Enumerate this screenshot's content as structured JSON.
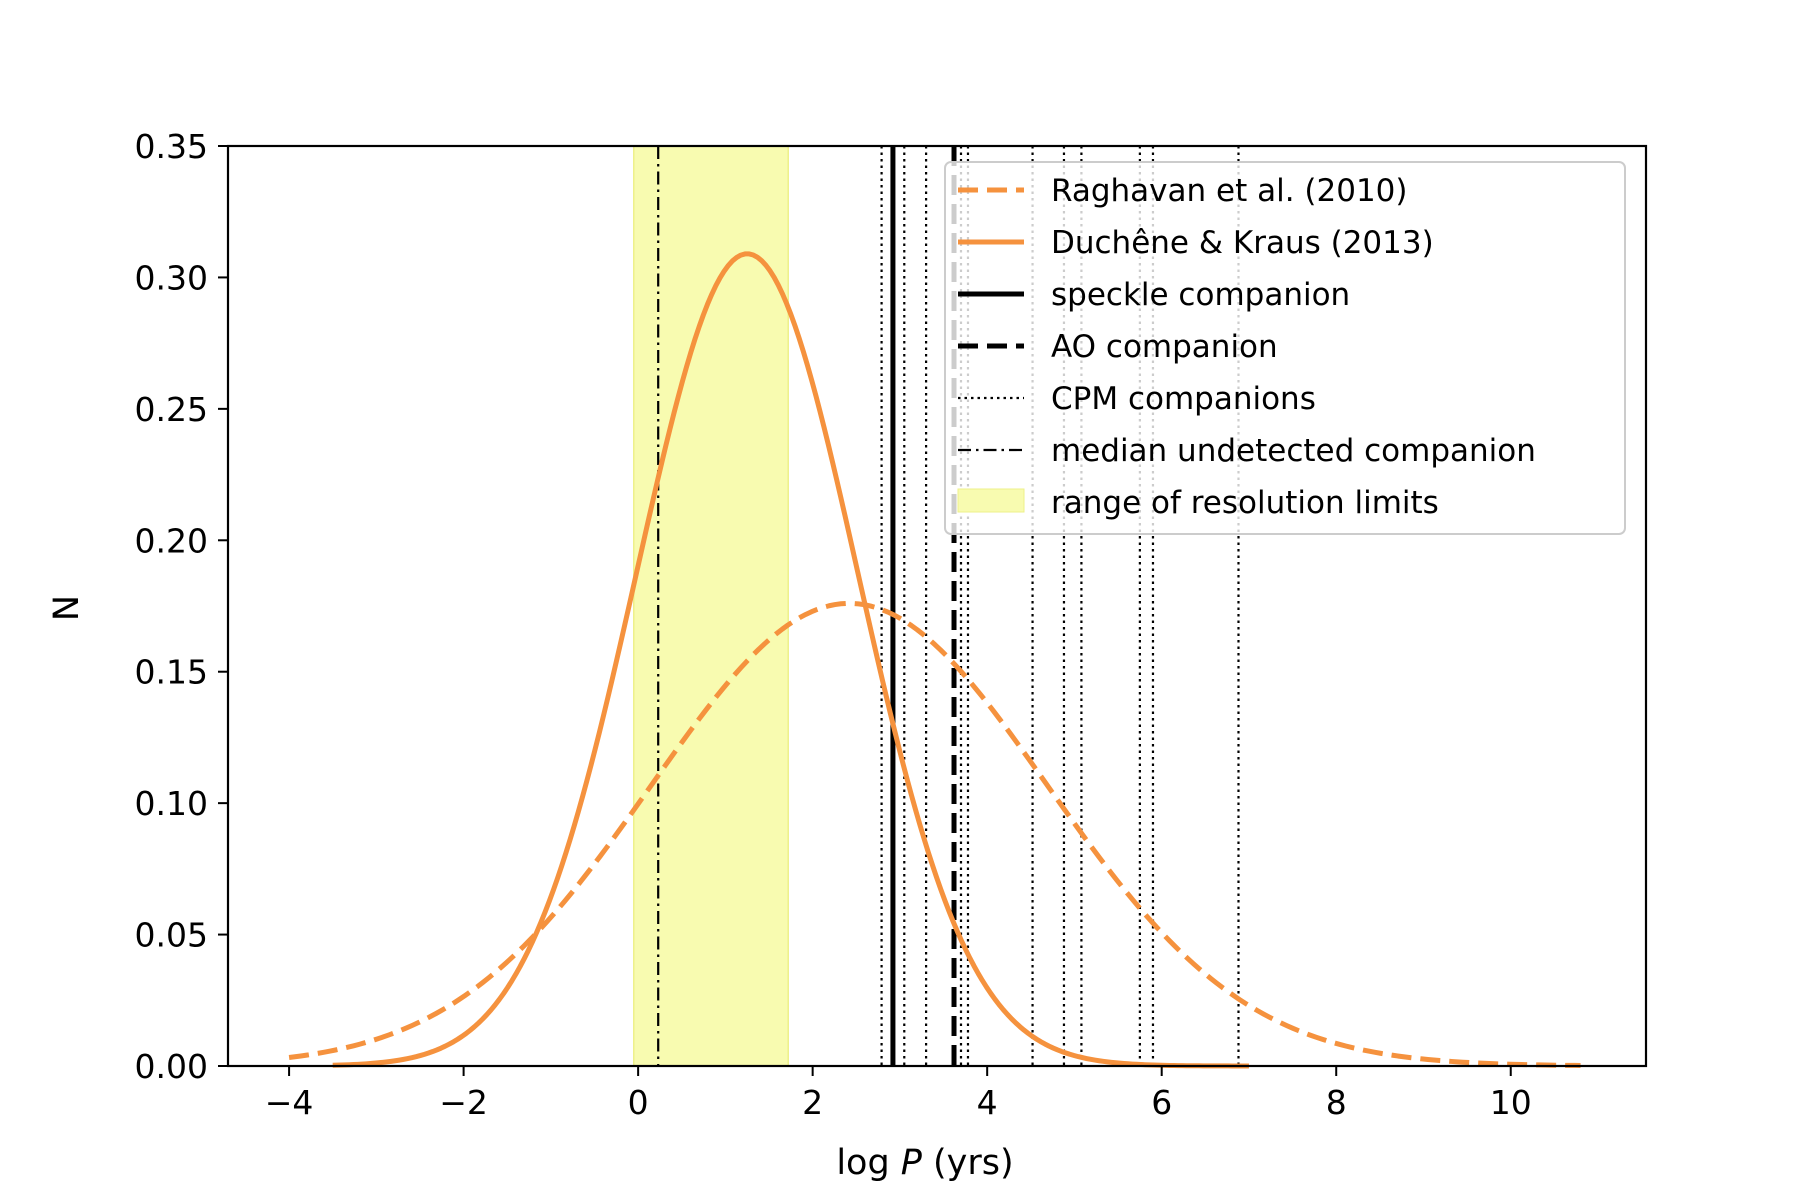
{
  "chart_data": {
    "type": "line",
    "title": "",
    "xlabel": "log P (yrs)",
    "xlabel_parts": {
      "prefix": "log ",
      "var": "P",
      "suffix": " (yrs)"
    },
    "ylabel": "N",
    "xlim": [
      -4.7,
      11.55
    ],
    "ylim": [
      0,
      0.35
    ],
    "xticks": [
      -4,
      -2,
      0,
      2,
      4,
      6,
      8,
      10
    ],
    "xtick_labels": [
      "−4",
      "−2",
      "0",
      "2",
      "4",
      "6",
      "8",
      "10"
    ],
    "yticks": [
      0,
      0.05,
      0.1,
      0.15,
      0.2,
      0.25,
      0.3,
      0.35
    ],
    "ytick_labels": [
      "0.00",
      "0.05",
      "0.10",
      "0.15",
      "0.20",
      "0.25",
      "0.30",
      "0.35"
    ],
    "grid": false,
    "legend_position": "upper-right",
    "colors": {
      "orange": "#f5923e",
      "band": "#f8fbb0",
      "black": "#000000"
    },
    "series": [
      {
        "name": "Raghavan et al. (2010)",
        "kind": "gaussian",
        "style": "dashed",
        "mean": 2.42,
        "sigma": 2.27,
        "peak": 0.176,
        "x_range": [
          -4.0,
          10.8
        ]
      },
      {
        "name": "Duchêne & Kraus (2013)",
        "kind": "gaussian",
        "style": "solid",
        "mean": 1.25,
        "sigma": 1.27,
        "peak": 0.309,
        "x_range": [
          -3.5,
          7.0
        ]
      }
    ],
    "vertical_lines": [
      {
        "name": "speckle companion",
        "style": "solid",
        "x": [
          2.92
        ]
      },
      {
        "name": "AO companion",
        "style": "dashed",
        "x": [
          3.62
        ]
      },
      {
        "name": "CPM companions",
        "style": "dotted",
        "x": [
          2.79,
          3.05,
          3.3,
          3.7,
          3.78,
          4.52,
          4.88,
          5.08,
          5.75,
          5.9,
          6.88
        ]
      },
      {
        "name": "median undetected companion",
        "style": "dashdot",
        "x": [
          0.23
        ]
      }
    ],
    "shaded_band": {
      "name": "range of resolution limits",
      "x": [
        -0.05,
        1.72
      ]
    }
  }
}
